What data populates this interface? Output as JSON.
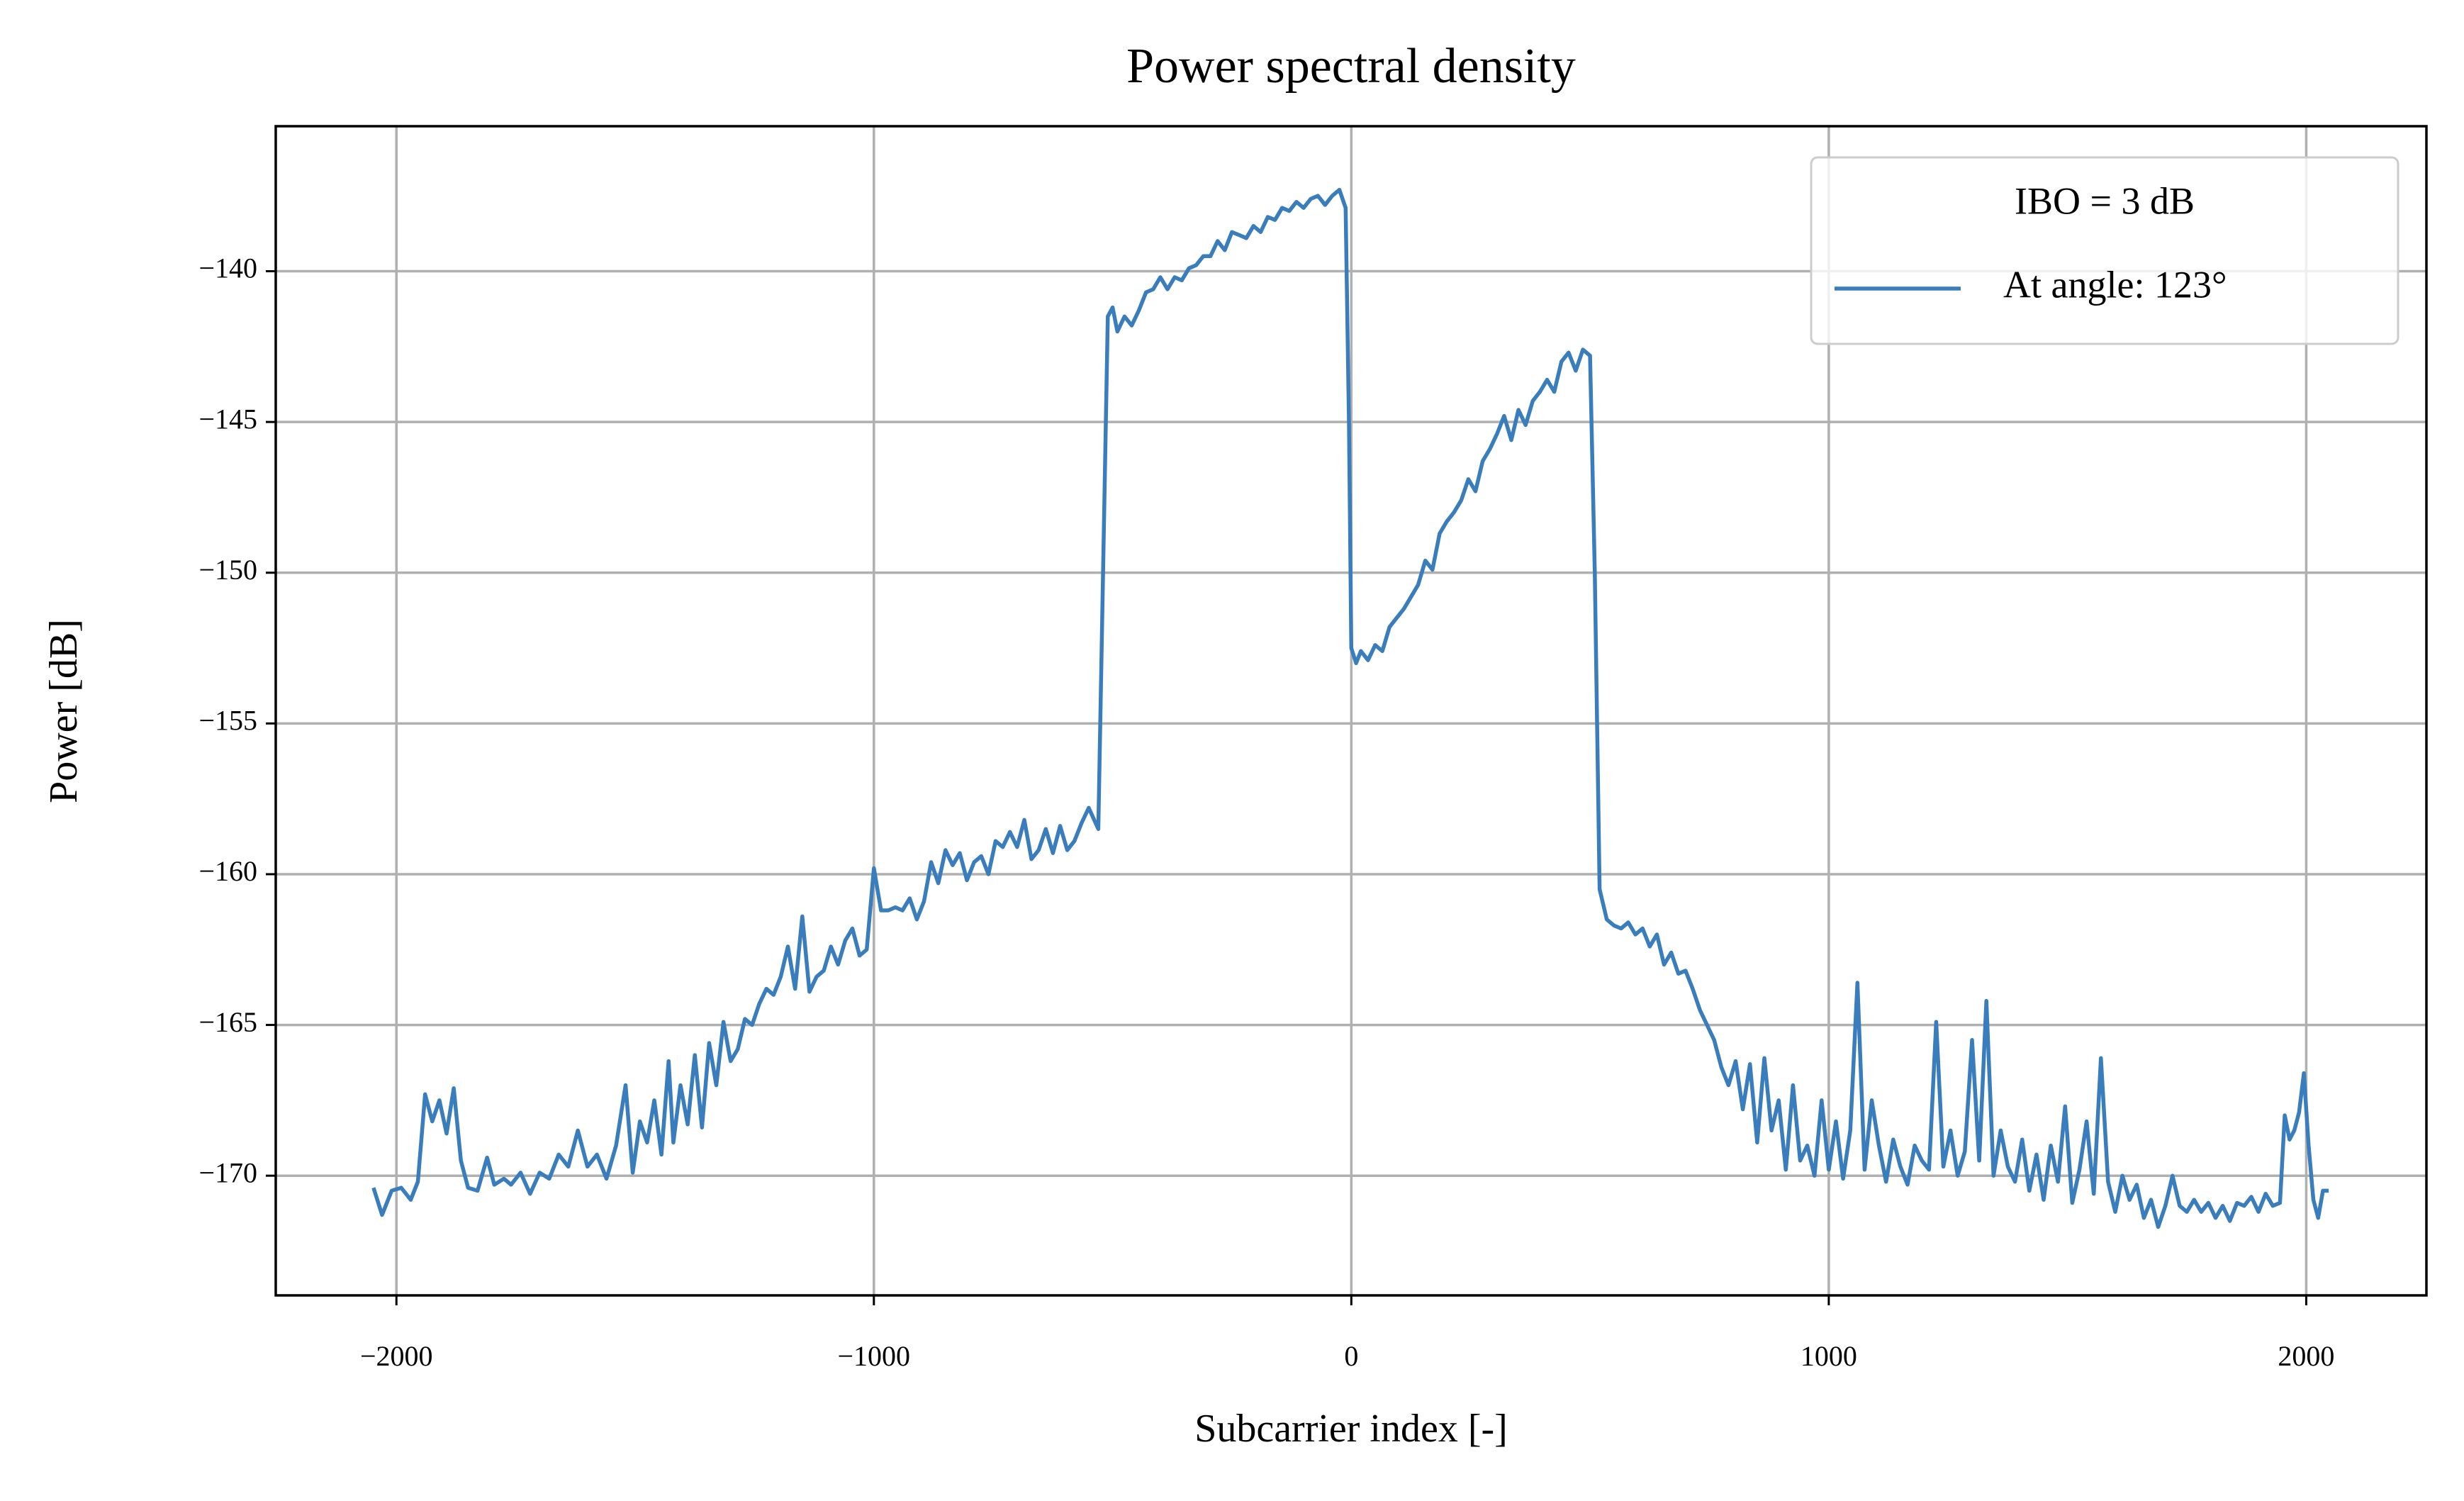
{
  "chart_data": {
    "type": "line",
    "title": "Power spectral density",
    "xlabel": "Subcarrier index [-]",
    "ylabel": "Power [dB]",
    "legend_title": "IBO = 3 dB",
    "legend_loc": "upper right",
    "grid": true,
    "xlim": [
      -2252.75,
      2251.75
    ],
    "ylim": [
      -173.97,
      -135.19
    ],
    "xticks": [
      {
        "value": -2000,
        "label": "−2000"
      },
      {
        "value": -1000,
        "label": "−1000"
      },
      0,
      1000,
      2000
    ],
    "yticks": [
      {
        "value": -170,
        "label": "−170"
      },
      {
        "value": -165,
        "label": "−165"
      },
      {
        "value": -160,
        "label": "−160"
      },
      {
        "value": -155,
        "label": "−155"
      },
      {
        "value": -150,
        "label": "−150"
      },
      {
        "value": -145,
        "label": "−145"
      },
      {
        "value": -140,
        "label": "−140"
      }
    ],
    "x": [
      -2048,
      -2030,
      -2010,
      -1990,
      -1970,
      -1955,
      -1940,
      -1925,
      -1910,
      -1895,
      -1880,
      -1865,
      -1850,
      -1830,
      -1810,
      -1795,
      -1775,
      -1760,
      -1740,
      -1720,
      -1700,
      -1680,
      -1660,
      -1640,
      -1620,
      -1600,
      -1580,
      -1560,
      -1540,
      -1520,
      -1505,
      -1490,
      -1475,
      -1460,
      -1445,
      -1430,
      -1420,
      -1405,
      -1390,
      -1375,
      -1360,
      -1345,
      -1330,
      -1315,
      -1300,
      -1285,
      -1270,
      -1255,
      -1240,
      -1225,
      -1210,
      -1195,
      -1180,
      -1165,
      -1150,
      -1135,
      -1120,
      -1105,
      -1090,
      -1075,
      -1060,
      -1045,
      -1030,
      -1015,
      -1000,
      -985,
      -970,
      -955,
      -940,
      -925,
      -910,
      -895,
      -880,
      -865,
      -850,
      -835,
      -820,
      -805,
      -790,
      -775,
      -760,
      -745,
      -730,
      -715,
      -700,
      -685,
      -670,
      -655,
      -640,
      -625,
      -610,
      -595,
      -580,
      -565,
      -550,
      -530,
      -520,
      -510,
      -500,
      -490,
      -475,
      -460,
      -445,
      -430,
      -415,
      -400,
      -385,
      -370,
      -355,
      -340,
      -325,
      -310,
      -295,
      -280,
      -265,
      -250,
      -235,
      -220,
      -205,
      -190,
      -175,
      -160,
      -145,
      -130,
      -115,
      -100,
      -85,
      -70,
      -55,
      -40,
      -25,
      -12,
      -5,
      0,
      10,
      20,
      35,
      50,
      65,
      80,
      95,
      110,
      125,
      140,
      155,
      170,
      185,
      200,
      215,
      230,
      245,
      260,
      275,
      290,
      305,
      320,
      335,
      350,
      365,
      380,
      395,
      410,
      425,
      440,
      455,
      470,
      485,
      500,
      510,
      520,
      535,
      550,
      565,
      580,
      595,
      610,
      625,
      640,
      655,
      670,
      685,
      700,
      715,
      730,
      745,
      760,
      775,
      790,
      805,
      820,
      835,
      850,
      865,
      880,
      895,
      910,
      925,
      940,
      955,
      970,
      985,
      1000,
      1015,
      1030,
      1045,
      1060,
      1075,
      1090,
      1105,
      1120,
      1135,
      1150,
      1165,
      1180,
      1195,
      1210,
      1225,
      1240,
      1255,
      1270,
      1285,
      1300,
      1315,
      1330,
      1345,
      1360,
      1375,
      1390,
      1405,
      1420,
      1435,
      1450,
      1465,
      1480,
      1495,
      1510,
      1525,
      1540,
      1555,
      1570,
      1585,
      1600,
      1615,
      1630,
      1645,
      1660,
      1675,
      1690,
      1705,
      1720,
      1735,
      1750,
      1765,
      1780,
      1795,
      1810,
      1825,
      1840,
      1855,
      1870,
      1885,
      1900,
      1915,
      1930,
      1945,
      1955,
      1965,
      1975,
      1985,
      1995,
      2005,
      2015,
      2025,
      2035,
      2047
    ],
    "series": [
      {
        "name": "At angle: 123°",
        "color": "#3a7dbc",
        "values": [
          -170.4,
          -171.3,
          -170.5,
          -170.4,
          -170.8,
          -170.2,
          -167.3,
          -168.2,
          -167.5,
          -168.6,
          -167.1,
          -169.5,
          -170.4,
          -170.5,
          -169.4,
          -170.3,
          -170.1,
          -170.3,
          -169.9,
          -170.6,
          -169.9,
          -170.1,
          -169.3,
          -169.7,
          -168.5,
          -169.7,
          -169.3,
          -170.1,
          -169.0,
          -167.0,
          -169.9,
          -168.2,
          -168.9,
          -167.5,
          -169.3,
          -166.2,
          -168.9,
          -167.0,
          -168.3,
          -166.0,
          -168.4,
          -165.6,
          -167.0,
          -164.9,
          -166.2,
          -165.8,
          -164.8,
          -165.0,
          -164.3,
          -163.8,
          -164.0,
          -163.4,
          -162.4,
          -163.8,
          -161.4,
          -163.9,
          -163.4,
          -163.2,
          -162.4,
          -163.0,
          -162.2,
          -161.8,
          -162.7,
          -162.5,
          -159.8,
          -161.2,
          -161.2,
          -161.1,
          -161.2,
          -160.8,
          -161.5,
          -160.9,
          -159.6,
          -160.3,
          -159.2,
          -159.7,
          -159.3,
          -160.2,
          -159.6,
          -159.4,
          -160.0,
          -158.9,
          -159.1,
          -158.6,
          -159.1,
          -158.2,
          -159.5,
          -159.2,
          -158.5,
          -159.3,
          -158.4,
          -159.2,
          -158.9,
          -158.3,
          -157.8,
          -158.5,
          -150,
          -141.5,
          -141.2,
          -142.0,
          -141.5,
          -141.8,
          -141.3,
          -140.7,
          -140.6,
          -140.2,
          -140.6,
          -140.2,
          -140.3,
          -139.9,
          -139.8,
          -139.5,
          -139.5,
          -139.0,
          -139.3,
          -138.7,
          -138.8,
          -138.9,
          -138.5,
          -138.7,
          -138.2,
          -138.3,
          -137.9,
          -138.0,
          -137.7,
          -137.9,
          -137.6,
          -137.5,
          -137.8,
          -137.5,
          -137.3,
          -137.9,
          -145,
          -152.5,
          -153.0,
          -152.6,
          -152.9,
          -152.4,
          -152.6,
          -151.8,
          -151.5,
          -151.2,
          -150.8,
          -150.4,
          -149.6,
          -149.9,
          -148.7,
          -148.3,
          -148.0,
          -147.6,
          -146.9,
          -147.3,
          -146.3,
          -145.9,
          -145.4,
          -144.8,
          -145.6,
          -144.6,
          -145.1,
          -144.3,
          -144.0,
          -143.6,
          -144.0,
          -143.0,
          -142.7,
          -143.3,
          -142.6,
          -142.8,
          -150,
          -160.5,
          -161.5,
          -161.7,
          -161.8,
          -161.6,
          -162.0,
          -161.8,
          -162.4,
          -162.0,
          -163.0,
          -162.6,
          -163.3,
          -163.2,
          -163.8,
          -164.5,
          -165.0,
          -165.5,
          -166.4,
          -167.0,
          -166.2,
          -167.8,
          -166.3,
          -168.9,
          -166.1,
          -168.5,
          -167.5,
          -169.8,
          -167.0,
          -169.5,
          -169.0,
          -170.0,
          -167.5,
          -169.8,
          -168.2,
          -170.1,
          -168.5,
          -163.6,
          -169.8,
          -167.5,
          -169.0,
          -170.2,
          -168.8,
          -169.7,
          -170.3,
          -169.0,
          -169.5,
          -169.8,
          -164.9,
          -169.7,
          -168.5,
          -170.0,
          -169.2,
          -165.5,
          -169.5,
          -164.2,
          -170.0,
          -168.5,
          -169.7,
          -170.2,
          -168.8,
          -170.5,
          -169.3,
          -170.8,
          -169.0,
          -170.2,
          -167.7,
          -170.9,
          -169.8,
          -168.2,
          -170.6,
          -166.1,
          -170.2,
          -171.2,
          -170.0,
          -170.8,
          -170.3,
          -171.4,
          -170.8,
          -171.7,
          -171.0,
          -170.0,
          -171.0,
          -171.2,
          -170.8,
          -171.2,
          -170.9,
          -171.4,
          -171.0,
          -171.5,
          -170.9,
          -171.0,
          -170.7,
          -171.2,
          -170.6,
          -171.0,
          -170.9,
          -168.0,
          -168.8,
          -168.5,
          -167.9,
          -166.6,
          -169.0,
          -170.8,
          -171.4,
          -170.5,
          -170.5
        ]
      }
    ]
  }
}
